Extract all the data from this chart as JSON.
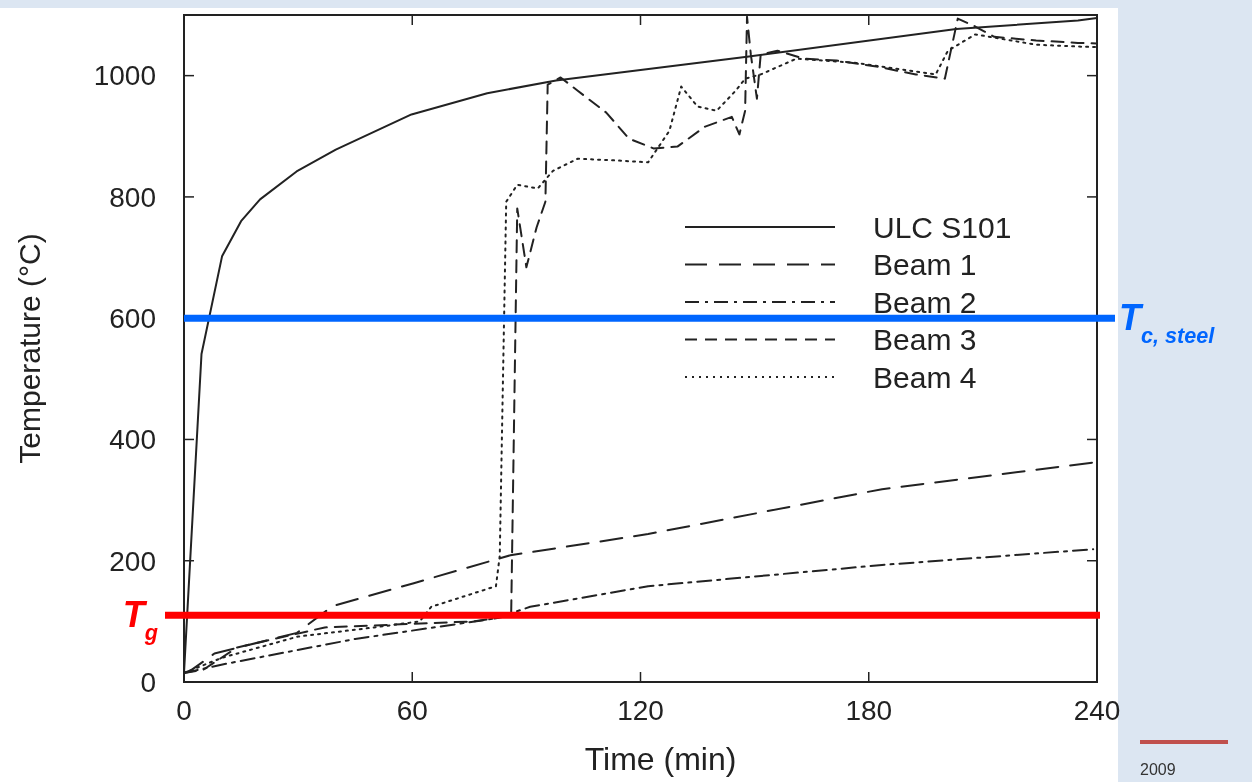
{
  "chart_data": {
    "type": "line",
    "xlabel": "Time (min)",
    "ylabel": "Temperature (°C)",
    "xlim": [
      0,
      240
    ],
    "xticks": [
      0,
      60,
      120,
      180,
      240
    ],
    "ylim": [
      0,
      1100
    ],
    "yticks": [
      0,
      200,
      400,
      600,
      800,
      1000
    ],
    "legend": "right",
    "grid": false,
    "series": [
      {
        "name": "ULC S101",
        "color": "#222222",
        "line_style": "solid",
        "x": [
          0,
          4.6,
          10,
          15,
          20,
          29.6,
          39.9,
          59.8,
          79.7,
          97.8,
          148,
          203,
          235,
          240
        ],
        "values": [
          15,
          541,
          702,
          760,
          796,
          842,
          878,
          936,
          971,
          992,
          1031,
          1077,
          1091,
          1095
        ]
      },
      {
        "name": "Beam 1",
        "color": "#222222",
        "line_style": "longdash",
        "x": [
          0,
          2,
          8,
          29.7,
          39,
          60.4,
          85.8,
          122,
          183.5,
          239
        ],
        "values": [
          15,
          20,
          47,
          81,
          125,
          163,
          209,
          244,
          318,
          362
        ]
      },
      {
        "name": "Beam 2",
        "color": "#222222",
        "line_style": "dashdot",
        "x": [
          0,
          11,
          45,
          82,
          91,
          122,
          183.5,
          239
        ],
        "values": [
          15,
          30,
          71,
          105,
          124,
          158,
          193,
          219
        ]
      },
      {
        "name": "Beam 3",
        "color": "#222222",
        "line_style": "dashed",
        "x": [
          0,
          5,
          14,
          37,
          76,
          82,
          86,
          87.6,
          90,
          92.7,
          95,
          95.6,
          99,
          103.5,
          111,
          117,
          123.4,
          129.7,
          137,
          144,
          146,
          147.5,
          148,
          149,
          150.6,
          151.6,
          156,
          163,
          171.5,
          182,
          192.4,
          200,
          203.4,
          208,
          213,
          224,
          235,
          240
        ],
        "values": [
          15,
          20,
          57,
          90,
          100,
          105,
          110,
          781,
          684,
          750,
          792,
          985,
          997,
          975,
          939,
          896,
          880,
          883,
          916,
          932,
          903,
          942,
          1097,
          1035,
          962,
          1035,
          1041,
          1028,
          1025,
          1015,
          1002,
          995,
          1094,
          1081,
          1064,
          1058,
          1054,
          1053
        ]
      },
      {
        "name": "Beam 4",
        "color": "#222222",
        "line_style": "dotted",
        "x": [
          0,
          10,
          30,
          50,
          62,
          65,
          82,
          83,
          84.7,
          87.6,
          93,
          97,
          103.5,
          114,
          122,
          127.6,
          130.7,
          135,
          140,
          145,
          147.5,
          151.6,
          161,
          176.7,
          197.6,
          200.8,
          208,
          224,
          235,
          240
        ],
        "values": [
          15,
          40,
          75,
          90,
          100,
          124,
          158,
          208,
          792,
          820,
          814,
          843,
          863,
          860,
          857,
          909,
          982,
          949,
          942,
          975,
          995,
          1002,
          1028,
          1021,
          1002,
          1041,
          1068,
          1051,
          1048,
          1047
        ]
      }
    ],
    "ref_lines": [
      {
        "axis": "y",
        "value": 110,
        "label": "T$_{g}$",
        "color": "#ff0000"
      },
      {
        "axis": "y",
        "value": 600,
        "label": "T$_{c, steel}$",
        "color": "#0066ff"
      }
    ],
    "annotations": [
      "2009"
    ]
  }
}
